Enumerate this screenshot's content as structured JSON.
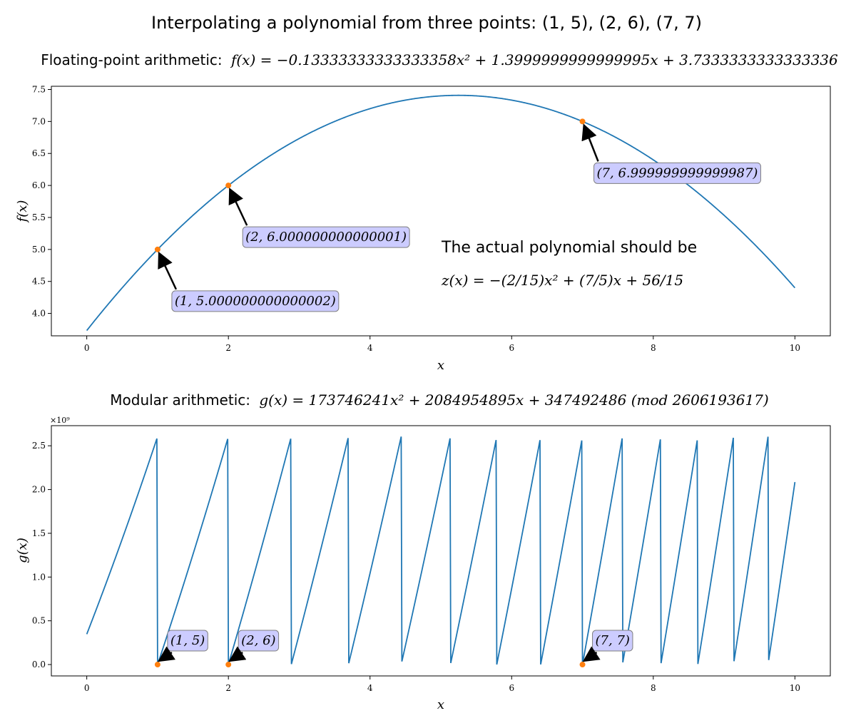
{
  "figure": {
    "suptitle": "Interpolating a polynomial from three points: (1, 5), (2, 6), (7, 7)"
  },
  "top": {
    "title_prefix": "Floating-point arithmetic:",
    "title_math": "f(x) = −0.13333333333333358x² + 1.3999999999999995x + 3.7333333333333336",
    "xlabel": "x",
    "ylabel": "f(x)",
    "annotation_line1": "The actual polynomial should be",
    "annotation_line2": "z(x) = −(2/15)x² + (7/5)x + 56/15"
  },
  "bottom": {
    "title_prefix": "Modular arithmetic:",
    "title_math": "g(x) = 173746241x² + 2084954895x + 347492486   (mod 2606193617)",
    "xlabel": "x",
    "ylabel": "g(x)",
    "offset_text": "×10⁹"
  },
  "colors": {
    "line": "#1f77b4",
    "point": "#ff7f0e",
    "box_fill": "#ccccff",
    "box_edge": "#7f7f7f"
  },
  "chart_data": [
    {
      "type": "line",
      "name": "top",
      "xlim": [
        -0.5,
        10.5
      ],
      "ylim": [
        3.65,
        7.55
      ],
      "xticks": [
        0,
        2,
        4,
        6,
        8,
        10
      ],
      "xtick_labels": [
        "0",
        "2",
        "4",
        "6",
        "8",
        "10"
      ],
      "yticks": [
        4.0,
        4.5,
        5.0,
        5.5,
        6.0,
        6.5,
        7.0,
        7.5
      ],
      "ytick_labels": [
        "4.0",
        "4.5",
        "5.0",
        "5.5",
        "6.0",
        "6.5",
        "7.0",
        "7.5"
      ],
      "curve": {
        "a": -0.13333333333333358,
        "b": 1.3999999999999995,
        "c": 3.7333333333333334,
        "x_start": 0,
        "x_end": 10
      },
      "points": [
        {
          "x": 1,
          "y": 5.000000000000002,
          "label": "(1, 5.000000000000002)"
        },
        {
          "x": 2,
          "y": 6.000000000000001,
          "label": "(2, 6.000000000000001)"
        },
        {
          "x": 7,
          "y": 6.999999999999987,
          "label": "(7, 6.999999999999987)"
        }
      ]
    },
    {
      "type": "line",
      "name": "bottom",
      "xlim": [
        -0.5,
        10.5
      ],
      "ylim": [
        -130000000.0,
        2730000000.0
      ],
      "xticks": [
        0,
        2,
        4,
        6,
        8,
        10
      ],
      "xtick_labels": [
        "0",
        "2",
        "4",
        "6",
        "8",
        "10"
      ],
      "yticks": [
        0,
        500000000.0,
        1000000000.0,
        1500000000.0,
        2000000000.0,
        2500000000.0
      ],
      "ytick_labels": [
        "0.0",
        "0.5",
        "1.0",
        "1.5",
        "2.0",
        "2.5"
      ],
      "curve": {
        "a": 173746241,
        "b": 2084954895,
        "c": 347492486,
        "mod": 2606193617,
        "x_start": 0,
        "x_end": 10
      },
      "points": [
        {
          "x": 1,
          "y": 0,
          "label": "(1, 5)"
        },
        {
          "x": 2,
          "y": 0,
          "label": "(2, 6)"
        },
        {
          "x": 7,
          "y": 0,
          "label": "(7, 7)"
        }
      ]
    }
  ]
}
